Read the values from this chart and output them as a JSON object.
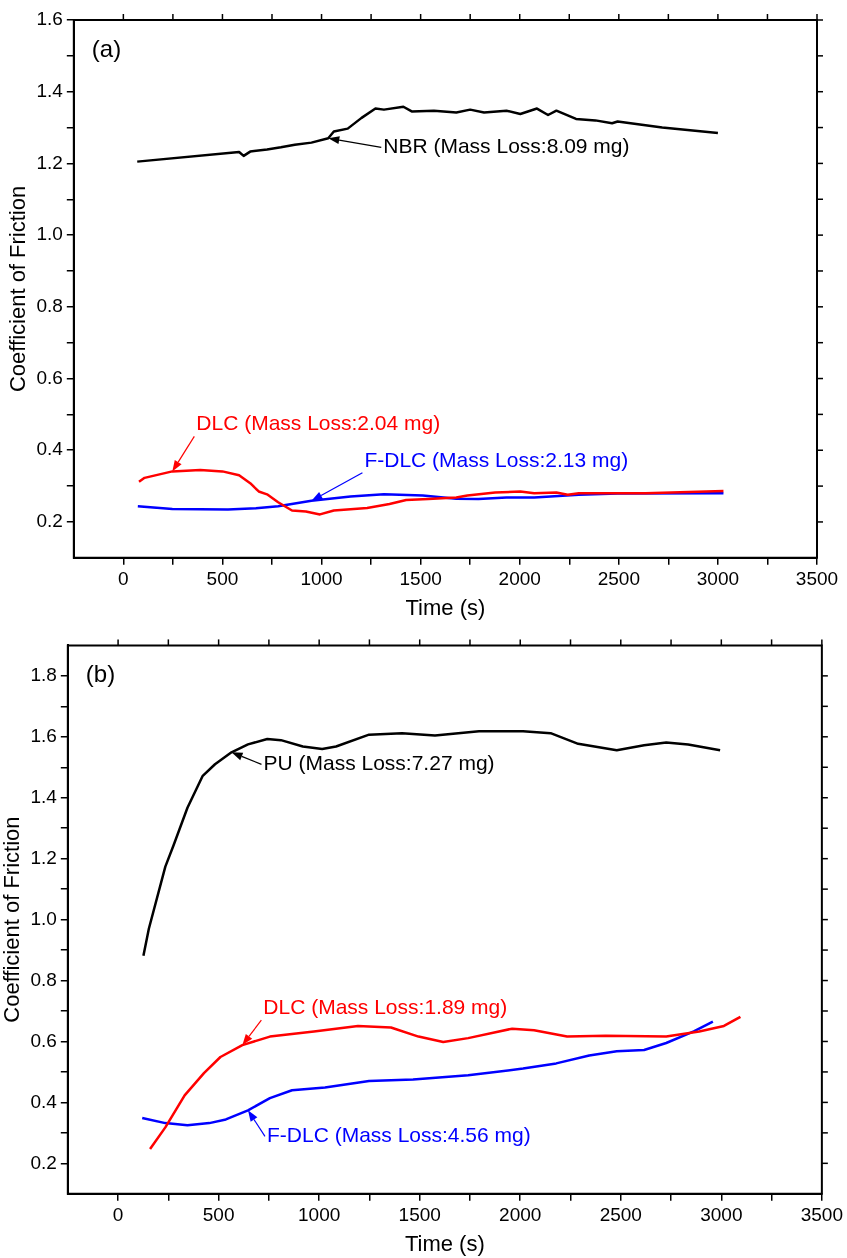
{
  "chart_data": [
    {
      "type": "line",
      "xlabel": "Time (s)",
      "ylabel": "Coefficient of Friction",
      "xlim": [
        -250,
        3500
      ],
      "ylim": [
        0.1,
        1.6
      ],
      "xticks": [
        0,
        {
          "value": 250,
          "label": null
        },
        500,
        {
          "value": 750,
          "label": null
        },
        1000,
        {
          "value": 1250,
          "label": null
        },
        1500,
        {
          "value": 1750,
          "label": null
        },
        2000,
        {
          "value": 2250,
          "label": null
        },
        2500,
        {
          "value": 2750,
          "label": null
        },
        3000,
        {
          "value": 3250,
          "label": null
        },
        3500
      ],
      "yticks": [
        0.2,
        {
          "value": 0.3,
          "label": null
        },
        0.4,
        {
          "value": 0.5,
          "label": null
        },
        0.6,
        {
          "value": 0.7,
          "label": null
        },
        0.8,
        {
          "value": 0.9,
          "label": null
        },
        {
          "value": 1,
          "label": "1.0"
        },
        {
          "value": 1.1,
          "label": null
        },
        1.2,
        {
          "value": 1.3,
          "label": null
        },
        1.4,
        {
          "value": 1.5,
          "label": null
        },
        1.6
      ],
      "annotations": [
        "(a)",
        {
          "text": "NBR (Mass Loss:8.09 mg)",
          "x": 1034,
          "y": 1.27
        },
        {
          "text": "DLC (Mass Loss:2.04 mg)",
          "x": 247,
          "y": 0.341
        },
        {
          "text": "F-DLC (Mass Loss:2.13 mg)",
          "x": 949,
          "y": 0.259
        }
      ],
      "series": [
        {
          "color": "#000000",
          "x": [
            70,
            584,
            607,
            640,
            725,
            795,
            865,
            949,
            1034,
            1062,
            1132,
            1202,
            1272,
            1315,
            1413,
            1455,
            1567,
            1680,
            1750,
            1820,
            1933,
            2003,
            2087,
            2143,
            2185,
            2284,
            2382,
            2466,
            2494,
            2719,
            3000
          ],
          "values": [
            1.205,
            1.232,
            1.221,
            1.233,
            1.239,
            1.245,
            1.252,
            1.258,
            1.27,
            1.289,
            1.297,
            1.327,
            1.353,
            1.35,
            1.358,
            1.345,
            1.347,
            1.342,
            1.35,
            1.342,
            1.347,
            1.338,
            1.353,
            1.335,
            1.347,
            1.324,
            1.32,
            1.312,
            1.317,
            1.3,
            1.285
          ]
        },
        {
          "color": "#ff0000",
          "x": [
            79,
            107,
            247,
            388,
            500,
            584,
            640,
            683,
            725,
            781,
            851,
            921,
            992,
            1062,
            1230,
            1343,
            1427,
            1539,
            1680,
            1736,
            1876,
            2003,
            2073,
            2185,
            2242,
            2298,
            2635,
            3028
          ],
          "values": [
            0.312,
            0.323,
            0.341,
            0.345,
            0.341,
            0.33,
            0.308,
            0.285,
            0.277,
            0.255,
            0.232,
            0.229,
            0.221,
            0.232,
            0.239,
            0.25,
            0.261,
            0.264,
            0.268,
            0.274,
            0.282,
            0.285,
            0.28,
            0.282,
            0.276,
            0.28,
            0.28,
            0.286
          ]
        },
        {
          "color": "#0000ff",
          "x": [
            73,
            247,
            528,
            669,
            781,
            949,
            1146,
            1315,
            1511,
            1680,
            1792,
            1933,
            2073,
            2298,
            2494,
            3028
          ],
          "values": [
            0.244,
            0.236,
            0.235,
            0.238,
            0.244,
            0.259,
            0.271,
            0.277,
            0.274,
            0.265,
            0.264,
            0.268,
            0.268,
            0.276,
            0.279,
            0.28
          ]
        }
      ]
    },
    {
      "type": "line",
      "xlabel": "Time (s)",
      "ylabel": "Coefficient of Friction",
      "xlim": [
        -250,
        3500
      ],
      "ylim": [
        0.1,
        1.9
      ],
      "xticks": [
        0,
        {
          "value": 250,
          "label": null
        },
        500,
        {
          "value": 750,
          "label": null
        },
        1000,
        {
          "value": 1250,
          "label": null
        },
        1500,
        {
          "value": 1750,
          "label": null
        },
        2000,
        {
          "value": 2250,
          "label": null
        },
        2500,
        {
          "value": 2750,
          "label": null
        },
        3000,
        {
          "value": 3250,
          "label": null
        },
        3500
      ],
      "yticks": [
        0.2,
        {
          "value": 0.3,
          "label": null
        },
        0.4,
        {
          "value": 0.5,
          "label": null
        },
        0.6,
        {
          "value": 0.7,
          "label": null
        },
        0.8,
        {
          "value": 0.9,
          "label": null
        },
        {
          "value": 1,
          "label": "1.0"
        },
        {
          "value": 1.1,
          "label": null
        },
        1.2,
        {
          "value": 1.3,
          "label": null
        },
        1.4,
        {
          "value": 1.5,
          "label": null
        },
        1.6,
        {
          "value": 1.7,
          "label": null
        },
        1.8
      ],
      "annotations": [
        "(b)",
        {
          "text": "PU (Mass Loss:7.27 mg)",
          "x": 564,
          "y": 1.549
        },
        {
          "text": "DLC (Mass Loss:1.89 mg)",
          "x": 618,
          "y": 0.588
        },
        {
          "text": "F-DLC (Mass Loss:4.56 mg)",
          "x": 646,
          "y": 0.374
        }
      ],
      "series": [
        {
          "color": "#000000",
          "x": [
            126,
            153,
            235,
            276,
            345,
            421,
            482,
            564,
            646,
            742,
            810,
            919,
            1015,
            1084,
            1248,
            1412,
            1576,
            1795,
            2014,
            2151,
            2288,
            2480,
            2616,
            2726,
            2835,
            2994
          ],
          "values": [
            0.881,
            0.97,
            1.174,
            1.244,
            1.367,
            1.472,
            1.51,
            1.549,
            1.575,
            1.593,
            1.589,
            1.568,
            1.56,
            1.568,
            1.607,
            1.612,
            1.604,
            1.618,
            1.618,
            1.612,
            1.577,
            1.556,
            1.572,
            1.581,
            1.575,
            1.556
          ]
        },
        {
          "color": "#ff0000",
          "x": [
            159,
            235,
            331,
            427,
            509,
            618,
            755,
            974,
            1193,
            1357,
            1494,
            1617,
            1741,
            1960,
            2069,
            2233,
            2425,
            2726,
            2890,
            3013,
            3095
          ],
          "values": [
            0.247,
            0.318,
            0.423,
            0.496,
            0.549,
            0.588,
            0.616,
            0.633,
            0.651,
            0.646,
            0.616,
            0.598,
            0.611,
            0.642,
            0.637,
            0.616,
            0.619,
            0.616,
            0.633,
            0.651,
            0.681
          ]
        },
        {
          "color": "#0000ff",
          "x": [
            120,
            235,
            345,
            454,
            536,
            646,
            755,
            865,
            1029,
            1248,
            1467,
            1741,
            2014,
            2179,
            2343,
            2480,
            2616,
            2726,
            2863,
            2958
          ],
          "values": [
            0.349,
            0.332,
            0.325,
            0.332,
            0.344,
            0.374,
            0.414,
            0.44,
            0.449,
            0.47,
            0.475,
            0.489,
            0.511,
            0.528,
            0.554,
            0.568,
            0.572,
            0.595,
            0.633,
            0.665
          ]
        }
      ]
    }
  ]
}
